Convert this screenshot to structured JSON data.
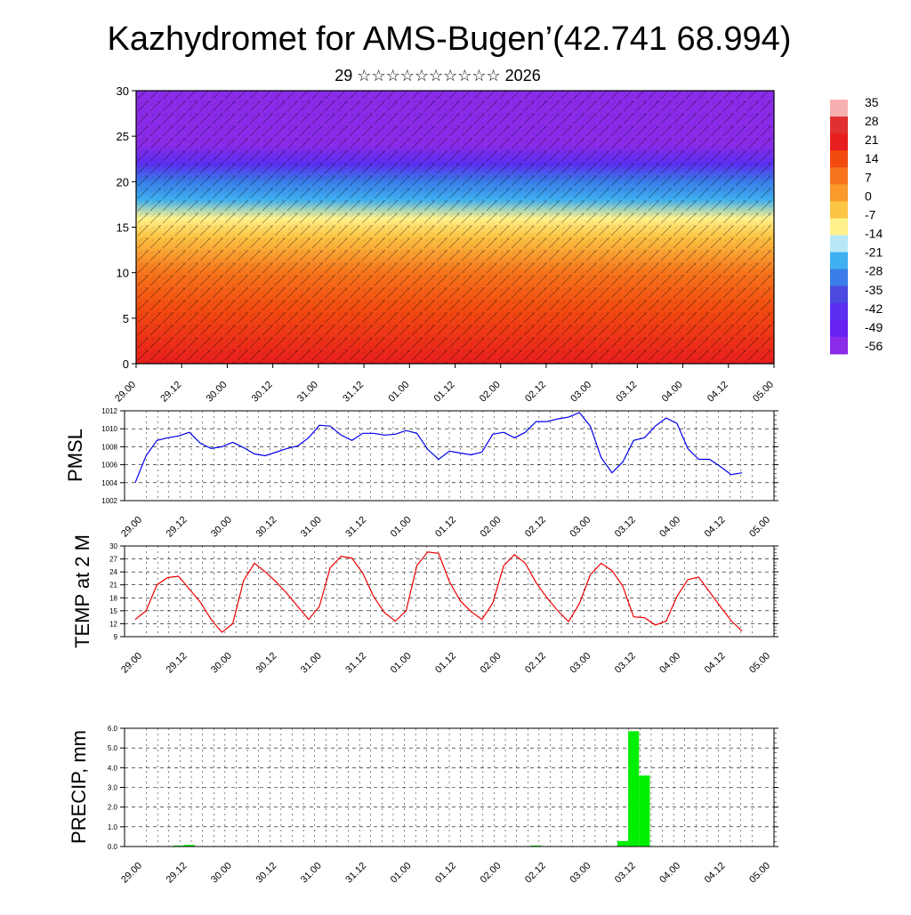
{
  "header": {
    "title": "Kazhydromet for AMS-Bugen’(42.741 68.994)",
    "subtitle": "29 ☆☆☆☆☆☆☆☆☆☆ 2026"
  },
  "time_labels": [
    "29.00",
    "29.12",
    "30.00",
    "30.12",
    "31.00",
    "31.12",
    "01.00",
    "01.12",
    "02.00",
    "02.12",
    "03.00",
    "03.12",
    "04.00",
    "04.12",
    "05.00"
  ],
  "chart_data": [
    {
      "type": "heatmap",
      "name": "upper-air-temperature-wind",
      "ylim": [
        0,
        30
      ],
      "yticks": [
        0,
        5,
        10,
        15,
        20,
        25,
        30
      ],
      "colorbar": {
        "labels": [
          "35",
          "28",
          "21",
          "14",
          "7",
          "0",
          "-7",
          "-14",
          "-21",
          "-28",
          "-35",
          "-42",
          "-49",
          "-56"
        ],
        "colors": [
          "#f7b0b0",
          "#e03030",
          "#e81e1e",
          "#f24b10",
          "#f6741c",
          "#fa9a2c",
          "#fcc545",
          "#fff28c",
          "#b8e8f8",
          "#3fb0f0",
          "#3a7ce8",
          "#4a4ae0",
          "#5a2ff0",
          "#6a22f2",
          "#8a2be8"
        ]
      },
      "temperature_profile": [
        {
          "height": 0,
          "value": 22
        },
        {
          "height": 6,
          "value": 18
        },
        {
          "height": 10,
          "value": 8
        },
        {
          "height": 14,
          "value": -2
        },
        {
          "height": 16,
          "value": -10
        },
        {
          "height": 18,
          "value": -22
        },
        {
          "height": 20,
          "value": -32
        },
        {
          "height": 22,
          "value": -45
        },
        {
          "height": 24,
          "value": -55
        },
        {
          "height": 30,
          "value": -60
        }
      ]
    },
    {
      "type": "line",
      "name": "pmsl",
      "ylabel": "PMSL",
      "ylim": [
        1002,
        1012
      ],
      "yticks": [
        1002,
        1004,
        1006,
        1008,
        1010,
        1012
      ],
      "color": "#0000ee",
      "values": [
        1004.0,
        1007.0,
        1008.7,
        1009.0,
        1009.2,
        1009.6,
        1008.4,
        1007.8,
        1008.0,
        1008.5,
        1007.9,
        1007.2,
        1007.0,
        1007.4,
        1007.8,
        1008.1,
        1009.0,
        1010.4,
        1010.3,
        1009.3,
        1008.7,
        1009.5,
        1009.5,
        1009.3,
        1009.4,
        1009.8,
        1009.5,
        1007.7,
        1006.6,
        1007.5,
        1007.3,
        1007.1,
        1007.4,
        1009.4,
        1009.6,
        1009.0,
        1009.6,
        1010.8,
        1010.8,
        1011.1,
        1011.3,
        1011.8,
        1010.3,
        1006.8,
        1005.1,
        1006.3,
        1008.7,
        1009.0,
        1010.3,
        1011.2,
        1010.6,
        1007.8,
        1006.6,
        1006.6,
        1005.8,
        1004.9,
        1005.1
      ]
    },
    {
      "type": "line",
      "name": "temp-2m",
      "ylabel": "TEMP at 2 M",
      "ylim": [
        9,
        30
      ],
      "yticks": [
        9,
        12,
        15,
        18,
        21,
        24,
        27,
        30
      ],
      "color": "#ee0000",
      "values": [
        13.0,
        15.0,
        21.0,
        22.7,
        23.0,
        20.0,
        17.0,
        13.0,
        10.0,
        12.0,
        22.0,
        26.0,
        24.0,
        21.7,
        19.0,
        16.0,
        13.0,
        16.0,
        25.0,
        27.6,
        27.2,
        23.7,
        18.3,
        14.6,
        12.6,
        15.0,
        25.5,
        28.6,
        28.3,
        21.7,
        17.3,
        14.8,
        13.0,
        16.8,
        25.4,
        28.0,
        26.0,
        21.5,
        18.0,
        15.0,
        12.5,
        16.7,
        23.3,
        26.0,
        24.3,
        20.7,
        13.6,
        13.4,
        11.7,
        12.6,
        18.3,
        22.2,
        22.8,
        19.4,
        16.0,
        12.7,
        10.3
      ]
    },
    {
      "type": "bar",
      "name": "precip",
      "ylabel": "PRECIP, mm",
      "ylim": [
        0,
        6
      ],
      "yticks": [
        "0.0",
        "1.0",
        "2.0",
        "3.0",
        "4.0",
        "5.0",
        "6.0"
      ],
      "color": "#00ee00",
      "bars": [
        {
          "index": 4,
          "value": 0.05
        },
        {
          "index": 5,
          "value": 0.08
        },
        {
          "index": 37,
          "value": 0.05
        },
        {
          "index": 45,
          "value": 0.28
        },
        {
          "index": 46,
          "value": 5.85
        },
        {
          "index": 47,
          "value": 3.6
        }
      ]
    }
  ]
}
